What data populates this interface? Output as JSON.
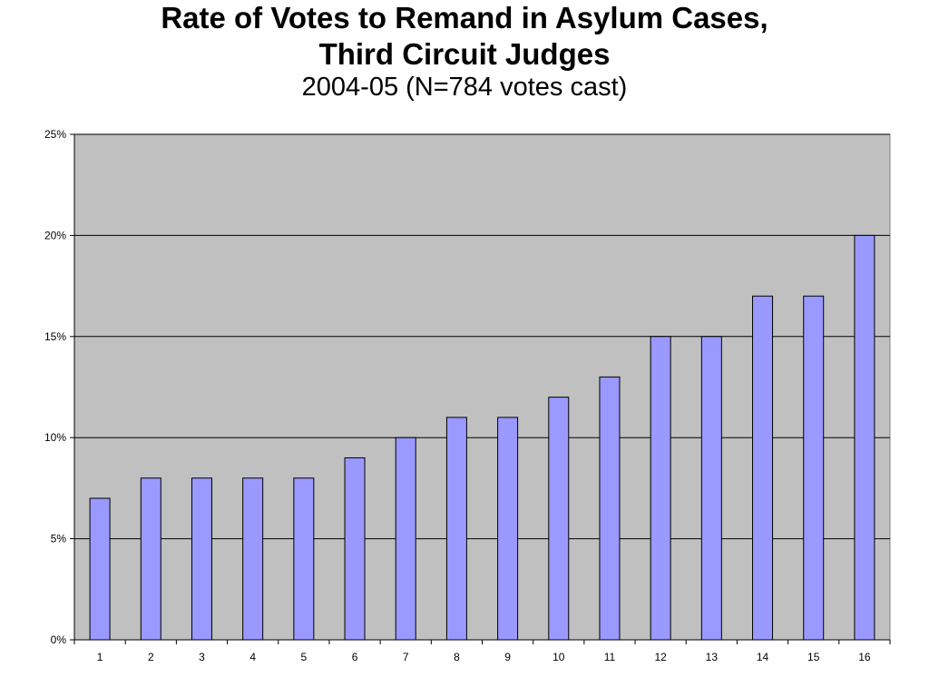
{
  "chart_data": {
    "type": "bar",
    "title_line1": "Rate of Votes to Remand in Asylum Cases,",
    "title_line2": "Third Circuit Judges",
    "subtitle": "2004-05 (N=784 votes cast)",
    "categories": [
      "1",
      "2",
      "3",
      "4",
      "5",
      "6",
      "7",
      "8",
      "9",
      "10",
      "11",
      "12",
      "13",
      "14",
      "15",
      "16"
    ],
    "values": [
      7,
      8,
      8,
      8,
      8,
      9,
      10,
      11,
      11,
      12,
      13,
      15,
      15,
      17,
      17,
      20
    ],
    "y_ticks": [
      "0%",
      "5%",
      "10%",
      "15%",
      "20%",
      "25%"
    ],
    "ylim": [
      0,
      25
    ],
    "y_step": 5,
    "grid": true,
    "legend": "none",
    "xlabel": "",
    "ylabel": "",
    "colors": {
      "plot_background": "#c0c0c0",
      "bar_fill": "#9999ff",
      "bar_stroke": "#000000",
      "gridline": "#000000"
    }
  }
}
